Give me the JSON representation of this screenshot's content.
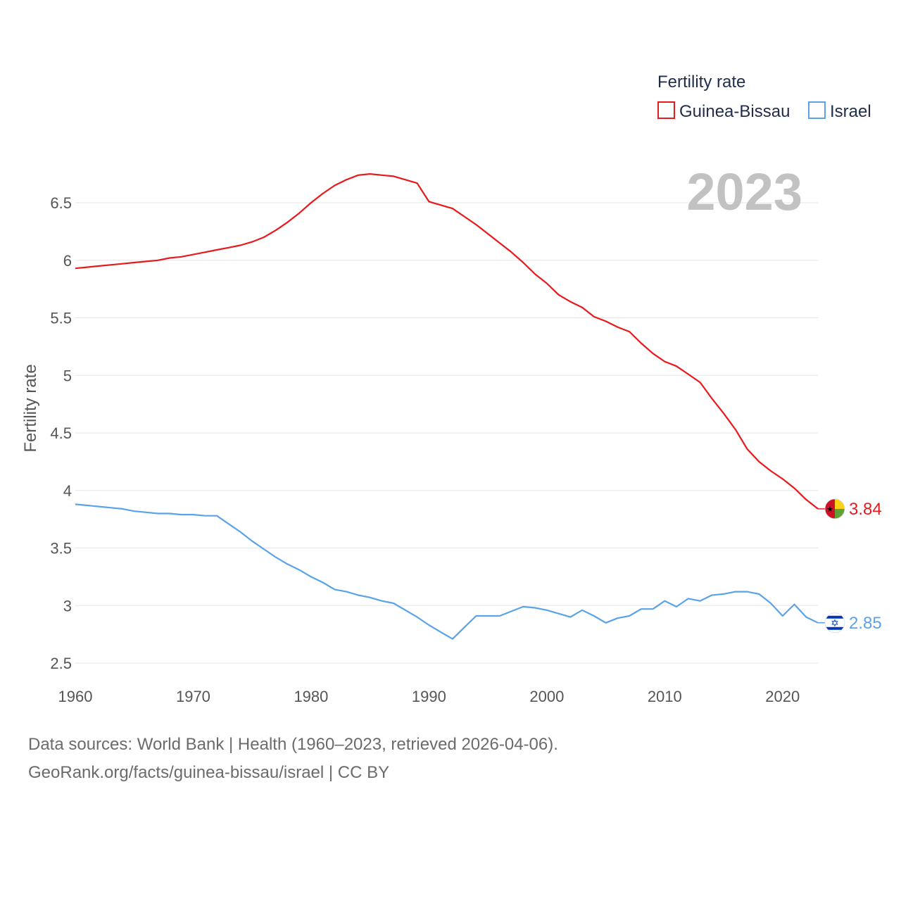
{
  "chart_data": {
    "type": "line",
    "title": "",
    "xlabel": "",
    "ylabel": "Fertility rate",
    "xlim": [
      1960,
      2023
    ],
    "ylim": [
      2.5,
      6.6
    ],
    "x_ticks": [
      1960,
      1970,
      1980,
      1990,
      2000,
      2010,
      2020
    ],
    "y_ticks": [
      2.5,
      3,
      3.5,
      4,
      4.5,
      5,
      5.5,
      6,
      6.5
    ],
    "y_tick_labels": [
      "2.5",
      "3",
      "3.5",
      "4",
      "4.5",
      "5",
      "5.5",
      "6",
      "6.5"
    ],
    "legend_title": "Fertility rate",
    "legend_position": "top-right",
    "current_year": "2023",
    "x": [
      1960,
      1961,
      1962,
      1963,
      1964,
      1965,
      1966,
      1967,
      1968,
      1969,
      1970,
      1971,
      1972,
      1973,
      1974,
      1975,
      1976,
      1977,
      1978,
      1979,
      1980,
      1981,
      1982,
      1983,
      1984,
      1985,
      1986,
      1987,
      1988,
      1989,
      1990,
      1991,
      1992,
      1993,
      1994,
      1995,
      1996,
      1997,
      1998,
      1999,
      2000,
      2001,
      2002,
      2003,
      2004,
      2005,
      2006,
      2007,
      2008,
      2009,
      2010,
      2011,
      2012,
      2013,
      2014,
      2015,
      2016,
      2017,
      2018,
      2019,
      2020,
      2021,
      2022,
      2023
    ],
    "series": [
      {
        "name": "Guinea-Bissau",
        "color": "#e8191d",
        "end_label": "3.84",
        "flag": "guinea-bissau-flag-icon",
        "values": [
          5.93,
          5.94,
          5.95,
          5.96,
          5.97,
          5.98,
          5.99,
          6.0,
          6.02,
          6.03,
          6.05,
          6.07,
          6.09,
          6.11,
          6.13,
          6.16,
          6.2,
          6.26,
          6.33,
          6.41,
          6.5,
          6.58,
          6.65,
          6.7,
          6.74,
          6.75,
          6.74,
          6.73,
          6.7,
          6.67,
          6.51,
          6.48,
          6.45,
          6.38,
          6.31,
          6.23,
          6.15,
          6.07,
          5.98,
          5.88,
          5.8,
          5.7,
          5.64,
          5.59,
          5.51,
          5.47,
          5.42,
          5.38,
          5.28,
          5.19,
          5.12,
          5.08,
          5.01,
          4.94,
          4.8,
          4.67,
          4.53,
          4.36,
          4.25,
          4.17,
          4.1,
          4.02,
          3.92,
          3.84
        ]
      },
      {
        "name": "Israel",
        "color": "#5aa3e8",
        "end_label": "2.85",
        "flag": "israel-flag-icon",
        "values": [
          3.88,
          3.87,
          3.86,
          3.85,
          3.84,
          3.82,
          3.81,
          3.8,
          3.8,
          3.79,
          3.79,
          3.78,
          3.78,
          3.71,
          3.64,
          3.56,
          3.49,
          3.42,
          3.36,
          3.31,
          3.25,
          3.2,
          3.14,
          3.12,
          3.09,
          3.07,
          3.04,
          3.02,
          2.96,
          2.9,
          2.83,
          2.77,
          2.71,
          2.81,
          2.91,
          2.91,
          2.91,
          2.95,
          2.99,
          2.98,
          2.96,
          2.93,
          2.9,
          2.96,
          2.91,
          2.85,
          2.89,
          2.91,
          2.97,
          2.97,
          3.04,
          2.99,
          3.06,
          3.04,
          3.09,
          3.1,
          3.12,
          3.12,
          3.1,
          3.02,
          2.91,
          3.01,
          2.9,
          2.85
        ]
      }
    ]
  },
  "footer": {
    "source_line": "Data sources: World Bank | Health (1960–2023, retrieved 2026-04-06).",
    "url_line": "GeoRank.org/facts/guinea-bissau/israel | CC BY"
  }
}
